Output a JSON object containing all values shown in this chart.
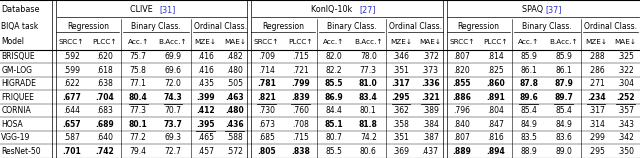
{
  "rows": [
    [
      "BRISQUE",
      ".592",
      ".620",
      "75.7",
      "69.9",
      ".416",
      ".482",
      ".709",
      ".715",
      "82.0",
      "78.0",
      ".346",
      ".372",
      ".807",
      ".814",
      "85.9",
      "85.9",
      ".288",
      ".325"
    ],
    [
      "GM-LOG",
      ".599",
      ".618",
      "75.8",
      "69.6",
      ".416",
      ".480",
      ".714",
      ".721",
      "82.2",
      "77.3",
      ".351",
      ".373",
      ".820",
      ".825",
      "86.1",
      "86.1",
      ".286",
      ".322"
    ],
    [
      "HIGRADE",
      ".622",
      ".638",
      "77.1",
      "72.0",
      ".435",
      ".505",
      ".781",
      ".799",
      "85.5",
      "81.0",
      ".317",
      ".336",
      ".855",
      ".860",
      "87.8",
      "87.9",
      ".271",
      ".304"
    ],
    [
      "FRIQUEE",
      ".677",
      ".704",
      "80.4",
      "74.3",
      ".399",
      ".463",
      ".821",
      ".839",
      "86.9",
      "83.4",
      ".295",
      ".321",
      ".886",
      ".891",
      "89.6",
      "89.7",
      ".234",
      ".252"
    ],
    [
      "CORNIA",
      ".644",
      ".683",
      "77.3",
      "70.7",
      ".412",
      ".480",
      ".730",
      ".760",
      "84.4",
      "80.1",
      ".362",
      ".389",
      ".796",
      ".804",
      "85.4",
      "85.4",
      ".317",
      ".357"
    ],
    [
      "HOSA",
      ".657",
      ".689",
      "80.1",
      "73.7",
      ".395",
      ".436",
      ".673",
      ".708",
      "85.1",
      "81.8",
      ".358",
      ".384",
      ".840",
      ".847",
      "84.9",
      "84.9",
      ".314",
      ".343"
    ],
    [
      "VGG-19",
      ".587",
      ".640",
      "77.2",
      "69.3",
      ".465",
      ".588",
      ".685",
      ".715",
      "80.7",
      "74.2",
      ".351",
      ".387",
      ".807",
      ".816",
      "83.5",
      "83.6",
      ".299",
      ".342"
    ],
    [
      "ResNet-50",
      ".701",
      ".742",
      "79.4",
      "72.7",
      ".457",
      ".572",
      ".805",
      ".838",
      "85.5",
      "80.6",
      ".369",
      ".437",
      ".889",
      ".894",
      "88.9",
      "89.0",
      ".295",
      ".350"
    ]
  ],
  "bold": [
    [
      false,
      false,
      false,
      false,
      false,
      false,
      false,
      false,
      false,
      false,
      false,
      false,
      false,
      false,
      false,
      false,
      false,
      false,
      false
    ],
    [
      false,
      false,
      false,
      false,
      false,
      false,
      false,
      false,
      false,
      false,
      false,
      false,
      false,
      false,
      false,
      false,
      false,
      false,
      false
    ],
    [
      false,
      false,
      false,
      false,
      false,
      false,
      false,
      true,
      true,
      true,
      true,
      true,
      true,
      true,
      true,
      true,
      true,
      false,
      false
    ],
    [
      false,
      true,
      true,
      true,
      true,
      true,
      true,
      true,
      true,
      true,
      true,
      true,
      true,
      true,
      true,
      true,
      true,
      true,
      true
    ],
    [
      false,
      false,
      false,
      false,
      false,
      true,
      true,
      false,
      false,
      false,
      false,
      false,
      false,
      false,
      false,
      false,
      false,
      false,
      false
    ],
    [
      false,
      true,
      true,
      true,
      true,
      true,
      true,
      false,
      false,
      true,
      true,
      false,
      false,
      false,
      false,
      false,
      false,
      false,
      false
    ],
    [
      false,
      false,
      false,
      false,
      false,
      false,
      false,
      false,
      false,
      false,
      false,
      false,
      false,
      false,
      false,
      false,
      false,
      false,
      false
    ],
    [
      false,
      true,
      true,
      false,
      false,
      false,
      false,
      true,
      true,
      false,
      false,
      false,
      false,
      true,
      true,
      false,
      false,
      false,
      false
    ]
  ],
  "underline": [
    [
      false,
      false,
      false,
      false,
      false,
      false,
      false,
      false,
      false,
      false,
      false,
      false,
      false,
      false,
      false,
      false,
      false,
      false,
      false
    ],
    [
      false,
      false,
      false,
      false,
      false,
      false,
      false,
      false,
      false,
      false,
      false,
      false,
      false,
      false,
      false,
      false,
      false,
      false,
      false
    ],
    [
      false,
      false,
      false,
      false,
      false,
      false,
      false,
      false,
      false,
      false,
      false,
      false,
      false,
      false,
      false,
      false,
      false,
      false,
      false
    ],
    [
      false,
      false,
      false,
      true,
      true,
      false,
      false,
      true,
      true,
      false,
      false,
      true,
      true,
      false,
      false,
      true,
      true,
      true,
      true
    ],
    [
      false,
      false,
      false,
      false,
      false,
      false,
      false,
      false,
      false,
      false,
      false,
      false,
      false,
      false,
      false,
      false,
      false,
      false,
      false
    ],
    [
      false,
      false,
      false,
      false,
      false,
      true,
      true,
      false,
      false,
      false,
      false,
      false,
      false,
      false,
      false,
      false,
      false,
      false,
      false
    ],
    [
      false,
      false,
      false,
      false,
      false,
      false,
      false,
      false,
      false,
      false,
      false,
      false,
      false,
      false,
      false,
      false,
      false,
      false,
      false
    ],
    [
      false,
      true,
      true,
      false,
      false,
      false,
      false,
      false,
      false,
      false,
      false,
      false,
      false,
      true,
      true,
      false,
      false,
      false,
      false
    ]
  ],
  "cite_color": "#3333cc",
  "bg_color": "#ffffff"
}
